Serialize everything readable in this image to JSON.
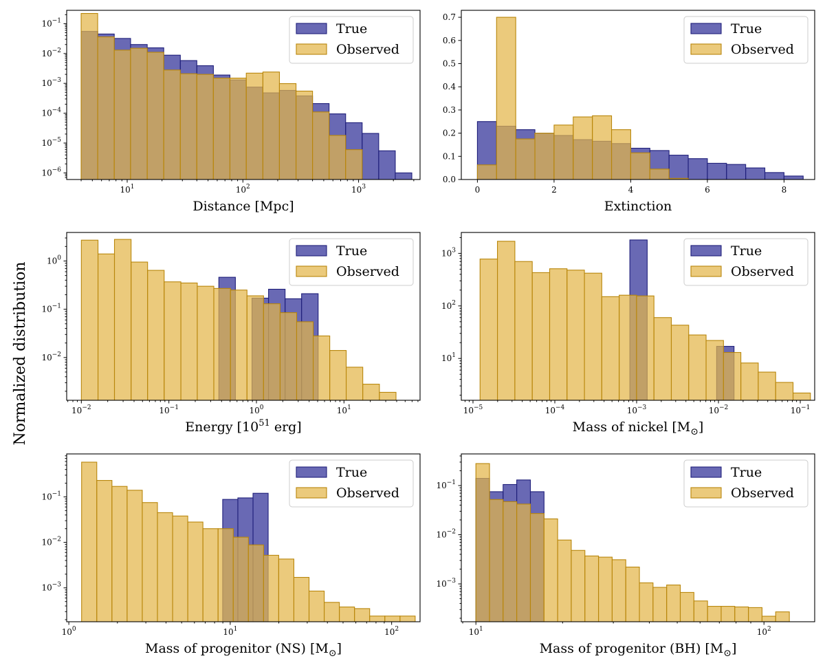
{
  "figure": {
    "ylabel": "Normalized distribution",
    "colors": {
      "true_fill": "#3f3f9f",
      "true_edge": "#1f1f7a",
      "observed_fill": "#e3b54a",
      "observed_edge": "#b8860b"
    }
  },
  "chart_data": [
    {
      "type": "bar",
      "id": "distance",
      "xlabel": "Distance [Mpc]",
      "xscale": "log",
      "yscale": "log",
      "xlim": [
        3.0,
        3400
      ],
      "ylim": [
        6e-07,
        0.28
      ],
      "xticks": [
        {
          "v": 10,
          "m": "10",
          "e": "1"
        },
        {
          "v": 100,
          "m": "10",
          "e": "2"
        },
        {
          "v": 1000,
          "m": "10",
          "e": "3"
        }
      ],
      "yticks": [
        {
          "v": 1e-06,
          "m": "10",
          "e": "−6"
        },
        {
          "v": 1e-05,
          "m": "10",
          "e": "−5"
        },
        {
          "v": 0.0001,
          "m": "10",
          "e": "−4"
        },
        {
          "v": 0.001,
          "m": "10",
          "e": "−3"
        },
        {
          "v": 0.01,
          "m": "10",
          "e": "−2"
        },
        {
          "v": 0.1,
          "m": "10",
          "e": "−1"
        }
      ],
      "legend": {
        "loc": "top-right",
        "entries": [
          "True",
          "Observed"
        ]
      },
      "series": [
        {
          "name": "True",
          "edges": [
            4.0,
            5.56,
            7.73,
            10.7,
            14.9,
            20.7,
            28.8,
            40.0,
            55.6,
            77.3,
            107,
            149,
            207,
            288,
            400,
            556,
            773,
            1074,
            1493,
            2076,
            2885
          ],
          "values": [
            0.055,
            0.045,
            0.032,
            0.02,
            0.0155,
            0.0088,
            0.0058,
            0.0039,
            0.0019,
            0.0013,
            0.00075,
            0.00048,
            0.00058,
            0.00038,
            0.00021,
            9.5e-05,
            4.8e-05,
            2.1e-05,
            5.5e-06,
            1e-06
          ]
        },
        {
          "name": "Observed",
          "edges": [
            4.0,
            5.56,
            7.73,
            10.7,
            14.9,
            20.7,
            28.8,
            40.0,
            55.6,
            77.3,
            107,
            149,
            207,
            288,
            400,
            556,
            773,
            1074
          ],
          "values": [
            0.22,
            0.036,
            0.013,
            0.015,
            0.011,
            0.0028,
            0.0021,
            0.002,
            0.0015,
            0.0015,
            0.0022,
            0.0024,
            0.00098,
            0.00055,
            0.00011,
            1.8e-05,
            6e-06,
            0
          ]
        }
      ]
    },
    {
      "type": "bar",
      "id": "extinction",
      "xlabel": "Extinction",
      "xscale": "linear",
      "yscale": "linear",
      "xlim": [
        -0.42,
        8.8
      ],
      "ylim": [
        0,
        0.73
      ],
      "xticks": [
        {
          "v": 0,
          "m": "0"
        },
        {
          "v": 2,
          "m": "2"
        },
        {
          "v": 4,
          "m": "4"
        },
        {
          "v": 6,
          "m": "6"
        },
        {
          "v": 8,
          "m": "8"
        }
      ],
      "yticks": [
        {
          "v": 0,
          "m": "0.0"
        },
        {
          "v": 0.1,
          "m": "0.1"
        },
        {
          "v": 0.2,
          "m": "0.2"
        },
        {
          "v": 0.3,
          "m": "0.3"
        },
        {
          "v": 0.4,
          "m": "0.4"
        },
        {
          "v": 0.5,
          "m": "0.5"
        },
        {
          "v": 0.6,
          "m": "0.6"
        },
        {
          "v": 0.7,
          "m": "0.7"
        }
      ],
      "legend": {
        "loc": "top-right",
        "entries": [
          "True",
          "Observed"
        ]
      },
      "series": [
        {
          "name": "True",
          "edges": [
            0,
            0.5,
            1.0,
            1.5,
            2.0,
            2.5,
            3.0,
            3.5,
            4.0,
            4.5,
            5.0,
            5.5,
            6.0,
            6.5,
            7.0,
            7.5,
            8.0,
            8.5
          ],
          "values": [
            0.25,
            0.23,
            0.215,
            0.2,
            0.19,
            0.172,
            0.165,
            0.155,
            0.135,
            0.125,
            0.105,
            0.09,
            0.07,
            0.065,
            0.05,
            0.03,
            0.015,
            0.005
          ]
        },
        {
          "name": "Observed",
          "edges": [
            0,
            0.5,
            1.0,
            1.5,
            2.0,
            2.5,
            3.0,
            3.5,
            4.0,
            4.5,
            5.0,
            5.5
          ],
          "values": [
            0.063,
            0.7,
            0.175,
            0.2,
            0.235,
            0.27,
            0.275,
            0.215,
            0.115,
            0.045,
            0.005,
            0
          ]
        }
      ]
    },
    {
      "type": "bar",
      "id": "energy",
      "xlabel": "Energy [10",
      "xlabel_sup": "51",
      "xlabel_tail": " erg]",
      "xscale": "log",
      "yscale": "log",
      "xlim": [
        0.0068,
        74
      ],
      "ylim": [
        0.0013,
        3.9
      ],
      "xticks": [
        {
          "v": 0.01,
          "m": "10",
          "e": "−2"
        },
        {
          "v": 0.1,
          "m": "10",
          "e": "−1"
        },
        {
          "v": 1,
          "m": "10",
          "e": "0"
        },
        {
          "v": 10,
          "m": "10",
          "e": "1"
        }
      ],
      "yticks": [
        {
          "v": 0.01,
          "m": "10",
          "e": "−2"
        },
        {
          "v": 0.1,
          "m": "10",
          "e": "−1"
        },
        {
          "v": 1,
          "m": "10",
          "e": "0"
        }
      ],
      "legend": {
        "loc": "top-right",
        "entries": [
          "True",
          "Observed"
        ]
      },
      "series": [
        {
          "name": "True",
          "edges": [
            0.372,
            0.575,
            0.89,
            1.375,
            2.125,
            3.28,
            5.07
          ],
          "values": [
            0.46,
            0,
            0.17,
            0.26,
            0.165,
            0.21
          ]
        },
        {
          "name": "Observed",
          "edges": [
            0.01,
            0.0155,
            0.0239,
            0.037,
            0.0571,
            0.0883,
            0.137,
            0.211,
            0.326,
            0.505,
            0.78,
            1.206,
            1.864,
            2.88,
            4.45,
            6.88,
            10.6,
            16.4,
            25.4,
            39.3,
            60.7
          ],
          "values": [
            2.7,
            1.4,
            2.8,
            0.95,
            0.64,
            0.37,
            0.35,
            0.3,
            0.27,
            0.25,
            0.19,
            0.13,
            0.085,
            0.055,
            0.028,
            0.014,
            0.0063,
            0.0028,
            0.0019,
            0
          ]
        }
      ]
    },
    {
      "type": "bar",
      "id": "nickel",
      "xlabel": "Mass of nickel [M",
      "xlabel_sub": "⊙",
      "xlabel_tail": "]",
      "xscale": "log",
      "yscale": "log",
      "xlim": [
        7.2e-06,
        0.15
      ],
      "ylim": [
        1.6,
        2500
      ],
      "xticks": [
        {
          "v": 1e-05,
          "m": "10",
          "e": "−5"
        },
        {
          "v": 0.0001,
          "m": "10",
          "e": "−4"
        },
        {
          "v": 0.001,
          "m": "10",
          "e": "−3"
        },
        {
          "v": 0.01,
          "m": "10",
          "e": "−2"
        },
        {
          "v": 0.1,
          "m": "10",
          "e": "−1"
        }
      ],
      "yticks": [
        {
          "v": 10,
          "m": "10",
          "e": "1"
        },
        {
          "v": 100,
          "m": "10",
          "e": "2"
        },
        {
          "v": 1000,
          "m": "10",
          "e": "3"
        }
      ],
      "legend": {
        "loc": "top-right",
        "entries": [
          "True",
          "Observed"
        ]
      },
      "series": [
        {
          "name": "True",
          "edges": [
            0.000826,
            0.001346,
            0.0022,
            0.00358,
            0.00583,
            0.0095,
            0.0155
          ],
          "values": [
            1800,
            0,
            0,
            0,
            0,
            17
          ]
        },
        {
          "name": "Observed",
          "edges": [
            1.22e-05,
            1.99e-05,
            3.25e-05,
            5.3e-05,
            8.65e-05,
            0.000141,
            0.00023,
            0.000375,
            0.000612,
            0.000998,
            0.001628,
            0.002655,
            0.00433,
            0.00706,
            0.01152,
            0.01879,
            0.03065,
            0.05,
            0.0816,
            0.133
          ],
          "values": [
            780,
            1700,
            700,
            430,
            510,
            480,
            420,
            150,
            160,
            155,
            60,
            43,
            28,
            22,
            13,
            8.2,
            5.5,
            3.5,
            2.2
          ]
        }
      ]
    },
    {
      "type": "bar",
      "id": "progenitor_ns",
      "xlabel": "Mass of progenitor (NS) [M",
      "xlabel_sub": "⊙",
      "xlabel_tail": "]",
      "xscale": "log",
      "yscale": "log",
      "xlim": [
        0.97,
        150
      ],
      "ylim": [
        0.00018,
        0.88
      ],
      "xticks": [
        {
          "v": 1,
          "m": "10",
          "e": "0"
        },
        {
          "v": 10,
          "m": "10",
          "e": "1"
        },
        {
          "v": 100,
          "m": "10",
          "e": "2"
        }
      ],
      "yticks": [
        {
          "v": 0.001,
          "m": "10",
          "e": "−3"
        },
        {
          "v": 0.01,
          "m": "10",
          "e": "−2"
        },
        {
          "v": 0.1,
          "m": "10",
          "e": "−1"
        }
      ],
      "legend": {
        "loc": "top-right",
        "entries": [
          "True",
          "Observed"
        ]
      },
      "series": [
        {
          "name": "True",
          "edges": [
            8.98,
            11.15,
            13.84,
            17.18
          ],
          "values": [
            0.088,
            0.095,
            0.12
          ]
        },
        {
          "name": "Observed",
          "edges": [
            1.2,
            1.49,
            1.85,
            2.297,
            2.852,
            3.54,
            4.395,
            5.456,
            6.773,
            8.408,
            10.44,
            12.96,
            16.09,
            19.97,
            24.79,
            30.78,
            38.21,
            47.43,
            58.88,
            73.1,
            90.76,
            112.7,
            139.9
          ],
          "values": [
            0.58,
            0.23,
            0.17,
            0.14,
            0.075,
            0.045,
            0.038,
            0.028,
            0.02,
            0.02,
            0.013,
            0.0088,
            0.0052,
            0.0043,
            0.0017,
            0.00085,
            0.00048,
            0.00038,
            0.00035,
            0.00024,
            0.00024,
            0.00024
          ]
        }
      ]
    },
    {
      "type": "bar",
      "id": "progenitor_bh",
      "xlabel": "Mass of progenitor (BH) [M",
      "xlabel_sub": "⊙",
      "xlabel_tail": "]",
      "xscale": "log",
      "yscale": "log",
      "xlim": [
        8.9,
        150
      ],
      "ylim": [
        0.00017,
        0.44
      ],
      "xticks": [
        {
          "v": 10,
          "m": "10",
          "e": "1"
        },
        {
          "v": 100,
          "m": "10",
          "e": "2"
        }
      ],
      "yticks": [
        {
          "v": 0.001,
          "m": "10",
          "e": "−3"
        },
        {
          "v": 0.01,
          "m": "10",
          "e": "−2"
        },
        {
          "v": 0.1,
          "m": "10",
          "e": "−1"
        }
      ],
      "legend": {
        "loc": "top-right",
        "entries": [
          "True",
          "Observed"
        ]
      },
      "series": [
        {
          "name": "True",
          "edges": [
            10.0,
            11.15,
            12.43,
            13.86,
            15.46,
            17.24,
            19.22
          ],
          "values": [
            0.14,
            0.075,
            0.105,
            0.13,
            0.075,
            0
          ]
        },
        {
          "name": "Observed",
          "edges": [
            10.0,
            11.15,
            12.43,
            13.86,
            15.46,
            17.24,
            19.22,
            21.43,
            23.9,
            26.65,
            29.72,
            33.14,
            36.95,
            41.2,
            45.94,
            51.23,
            57.13,
            63.7,
            71.03,
            79.2,
            88.32,
            98.48,
            109.8,
            122.5,
            136.5
          ],
          "values": [
            0.28,
            0.052,
            0.047,
            0.042,
            0.027,
            0.021,
            0.0078,
            0.0048,
            0.0037,
            0.0035,
            0.0031,
            0.0022,
            0.00105,
            0.00085,
            0.00095,
            0.00067,
            0.00045,
            0.00035,
            0.00035,
            0.00034,
            0.00033,
            0.00022,
            0.00027,
            0
          ]
        }
      ]
    }
  ]
}
